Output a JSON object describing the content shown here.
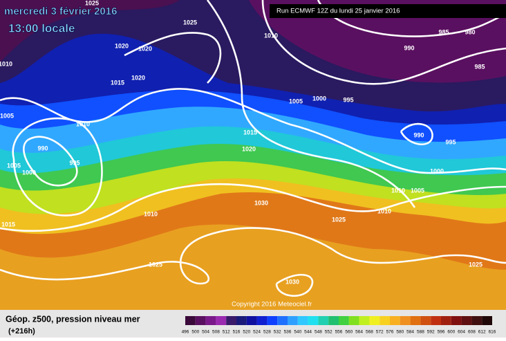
{
  "header": {
    "date": "mercredi 3 février 2016",
    "time": "13:00 locale",
    "run": "Run ECMWF 12Z du lundi 25 janvier 2016"
  },
  "isobar_labels": [
    1025,
    1025,
    1020,
    1020,
    1015,
    1020,
    1010,
    1005,
    1010,
    990,
    995,
    1005,
    1000,
    1015,
    1010,
    1030,
    1025,
    1030,
    1015,
    1020,
    1010,
    1005,
    1000,
    995,
    990,
    985,
    980,
    985,
    990,
    995,
    1000,
    1010,
    1005,
    1010,
    1025,
    1025
  ],
  "copyright": "Copyright 2016 Meteociel.fr",
  "legend": {
    "title": "Géop. z500, pression niveau mer",
    "lead": "(+216h)",
    "levels": [
      496,
      500,
      504,
      508,
      512,
      516,
      520,
      524,
      528,
      532,
      536,
      540,
      544,
      548,
      552,
      556,
      560,
      564,
      568,
      572,
      576,
      580,
      584,
      588,
      592,
      596,
      600,
      604,
      608,
      612,
      616
    ],
    "colors": [
      "#3a0a3a",
      "#5a1060",
      "#7a1a8a",
      "#9a2ab0",
      "#3a1a6a",
      "#1a1a7a",
      "#1010a0",
      "#1020d0",
      "#1040ff",
      "#2070ff",
      "#30a0ff",
      "#30c8ff",
      "#20e0f0",
      "#20d0b0",
      "#20c070",
      "#40d040",
      "#80e020",
      "#c0f020",
      "#f0f020",
      "#f8d020",
      "#f8b020",
      "#f09020",
      "#e07010",
      "#d05010",
      "#c03010",
      "#a02010",
      "#801010",
      "#601010",
      "#401010",
      "#200808"
    ]
  }
}
